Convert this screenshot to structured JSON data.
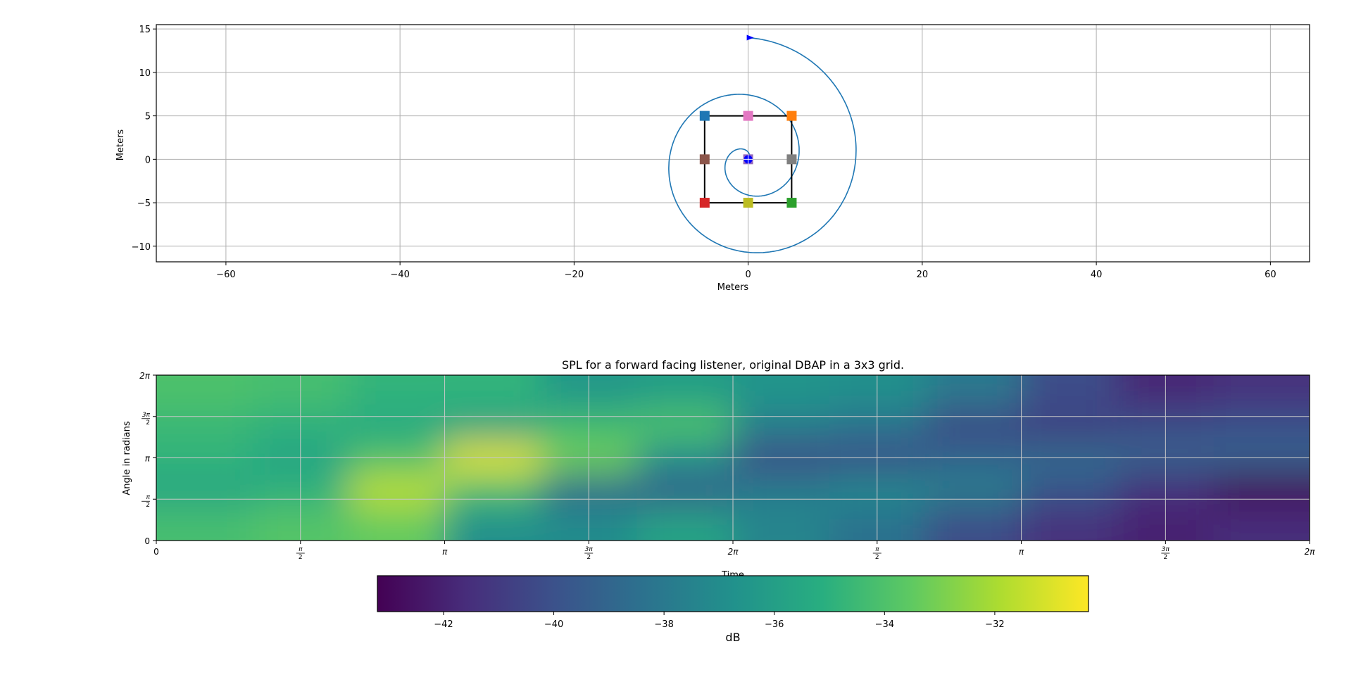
{
  "chart_data": [
    {
      "type": "scatter",
      "title": "",
      "xlabel": "Meters",
      "ylabel": "Meters",
      "xlim": [
        -68,
        64.5
      ],
      "ylim": [
        -11.8,
        15.5
      ],
      "xticks": [
        -60,
        -40,
        -20,
        0,
        20,
        40,
        60
      ],
      "xtick_labels": [
        "−60",
        "−40",
        "−20",
        "0",
        "20",
        "40",
        "60"
      ],
      "yticks": [
        -10,
        -5,
        0,
        5,
        10,
        15
      ],
      "ytick_labels": [
        "−10",
        "−5",
        "0",
        "5",
        "10",
        "15"
      ],
      "grid": true,
      "speakers": [
        {
          "x": -5,
          "y": 5,
          "color": "#1f77b4"
        },
        {
          "x": 5,
          "y": 5,
          "color": "#ff7f0e"
        },
        {
          "x": 5,
          "y": -5,
          "color": "#2ca02c"
        },
        {
          "x": -5,
          "y": -5,
          "color": "#d62728"
        },
        {
          "x": 0,
          "y": 0,
          "color": "#9467bd"
        },
        {
          "x": -5,
          "y": 0,
          "color": "#8c564b"
        },
        {
          "x": 0,
          "y": 5,
          "color": "#e377c2"
        },
        {
          "x": 5,
          "y": 0,
          "color": "#7f7f7f"
        },
        {
          "x": 0,
          "y": -5,
          "color": "#bcbd22"
        }
      ],
      "square": [
        [
          -5,
          5
        ],
        [
          5,
          5
        ],
        [
          5,
          -5
        ],
        [
          -5,
          -5
        ]
      ],
      "spiral": {
        "turns": 2,
        "start_angle_deg": 45,
        "end_radius": 14,
        "color": "#1f77b4"
      },
      "listener": {
        "x": 0,
        "y": 0,
        "color": "#0000ff"
      },
      "arrow": {
        "x": 0,
        "y": 14,
        "color": "#0000ff"
      }
    },
    {
      "type": "heatmap",
      "title": "SPL for a forward facing listener, original DBAP in a 3x3 grid.",
      "xlabel": "Time",
      "ylabel": "Angle in radians",
      "xlim": [
        0,
        12.566
      ],
      "ylim": [
        0,
        6.283
      ],
      "xticks": [
        0,
        1.571,
        3.142,
        4.712,
        6.283,
        7.854,
        9.425,
        10.996,
        12.566
      ],
      "xtick_labels": [
        [
          "0"
        ],
        [
          "π",
          "2"
        ],
        [
          "π"
        ],
        [
          "3π",
          "2"
        ],
        [
          "2π"
        ],
        [
          "π",
          "2"
        ],
        [
          "π"
        ],
        [
          "3π",
          "2"
        ],
        [
          "2π"
        ]
      ],
      "yticks": [
        0,
        1.571,
        3.142,
        4.712,
        6.283
      ],
      "ytick_labels": [
        [
          "0"
        ],
        [
          "π",
          "2"
        ],
        [
          "π"
        ],
        [
          "3π",
          "2"
        ],
        [
          "2π"
        ]
      ],
      "grid": true,
      "colormap": "viridis",
      "colorbar": {
        "label": "dB",
        "range": [
          -43.2,
          -30.3
        ],
        "ticks": [
          -42,
          -40,
          -38,
          -36,
          -34,
          -32
        ],
        "tick_labels": [
          "−42",
          "−40",
          "−38",
          "−36",
          "−34",
          "−32"
        ],
        "orientation": "horizontal"
      },
      "grid_values": [
        [
          -34.0,
          -34.2,
          -34.8,
          -34.8,
          -36.4,
          -36.0,
          -36.6,
          -36.8,
          -38.0,
          -40.2,
          -41.8,
          -41.4
        ],
        [
          -34.6,
          -35.0,
          -35.4,
          -35.8,
          -34.4,
          -34.0,
          -37.6,
          -38.2,
          -40.4,
          -40.8,
          -40.2,
          -40.0
        ],
        [
          -34.8,
          -35.6,
          -34.0,
          -30.9,
          -33.2,
          -36.8,
          -40.2,
          -40.0,
          -39.0,
          -38.8,
          -39.2,
          -39.2
        ],
        [
          -35.6,
          -35.0,
          -31.6,
          -34.2,
          -38.8,
          -39.2,
          -37.8,
          -37.2,
          -37.8,
          -39.8,
          -41.6,
          -43.0
        ],
        [
          -34.2,
          -33.8,
          -33.4,
          -36.8,
          -37.0,
          -35.8,
          -37.4,
          -38.4,
          -40.2,
          -41.4,
          -42.0,
          -41.6
        ]
      ]
    }
  ]
}
